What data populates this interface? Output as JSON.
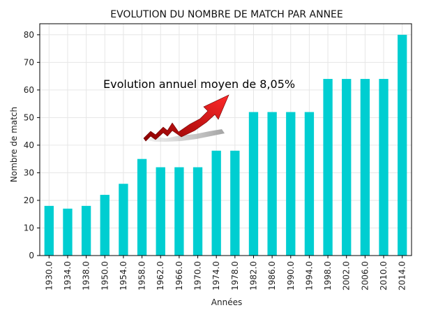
{
  "chart_data": {
    "type": "bar",
    "title": "EVOLUTION DU NOMBRE DE MATCH PAR ANNEE",
    "xlabel": "Années",
    "ylabel": "Nombre de match",
    "categories": [
      "1930.0",
      "1934.0",
      "1938.0",
      "1950.0",
      "1954.0",
      "1958.0",
      "1962.0",
      "1966.0",
      "1970.0",
      "1974.0",
      "1978.0",
      "1982.0",
      "1986.0",
      "1990.0",
      "1994.0",
      "1998.0",
      "2002.0",
      "2006.0",
      "2010.0",
      "2014.0"
    ],
    "values": [
      18,
      17,
      18,
      22,
      26,
      35,
      32,
      32,
      32,
      38,
      38,
      52,
      52,
      52,
      52,
      64,
      64,
      64,
      64,
      80
    ],
    "ylim": [
      0,
      84
    ],
    "yticks": [
      0,
      10,
      20,
      30,
      40,
      50,
      60,
      70,
      80
    ],
    "grid": true,
    "bar_color": "#00CED1",
    "annotation": "Evolution annuel moyen de 8,05%",
    "annotation_image": "rising-red-arrow-icon"
  }
}
